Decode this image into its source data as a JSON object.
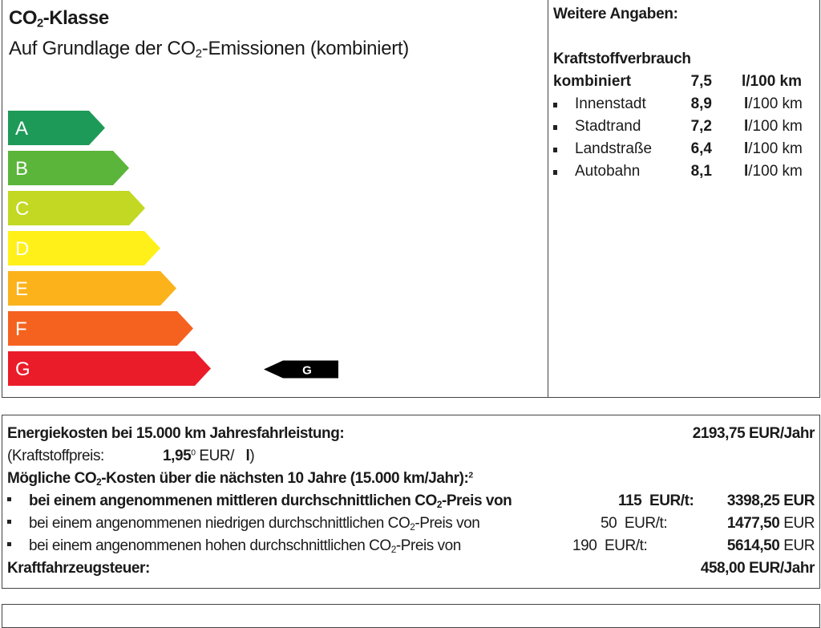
{
  "co2_class": {
    "title": "CO₂-Klasse",
    "title_parts": [
      "CO",
      "2",
      "-Klasse"
    ],
    "subtitle_parts": [
      "Auf Grundlage der CO",
      "2",
      "-Emissionen (kombiniert)"
    ],
    "classes": [
      {
        "label": "A",
        "color": "#1e9a58"
      },
      {
        "label": "B",
        "color": "#5bb53b"
      },
      {
        "label": "C",
        "color": "#c2d822"
      },
      {
        "label": "D",
        "color": "#fff01a"
      },
      {
        "label": "E",
        "color": "#fbb21b"
      },
      {
        "label": "F",
        "color": "#f5621f"
      },
      {
        "label": "G",
        "color": "#ea1c2a"
      }
    ],
    "current_class": "G"
  },
  "further_info": {
    "heading": "Weitere Angaben:",
    "fuel_heading": "Kraftstoffverbrauch",
    "combined": {
      "label": "kombiniert",
      "value": "7,5",
      "unit": "l/100 km"
    },
    "items": [
      {
        "label": "Innenstadt",
        "value": "8,9",
        "unit_l": "l",
        "unit_rest": "/100 km"
      },
      {
        "label": "Stadtrand",
        "value": "7,2",
        "unit_l": "l",
        "unit_rest": "/100 km"
      },
      {
        "label": "Landstraße",
        "value": "6,4",
        "unit_l": "l",
        "unit_rest": "/100 km"
      },
      {
        "label": "Autobahn",
        "value": "8,1",
        "unit_l": "l",
        "unit_rest": "/100 km"
      }
    ]
  },
  "costs": {
    "energy_label": "Energiekosten bei 15.000 km Jahresfahrleistung:",
    "energy_value": "2193,75 EUR/Jahr",
    "fuel_price_label": "(Kraftstoffpreis:",
    "fuel_price_value": "1,95",
    "fuel_price_sup": "0",
    "fuel_price_unit": "EUR/",
    "fuel_price_l": "l",
    "fuel_price_close": ")",
    "co2_heading_parts": [
      "Mögliche CO",
      "2",
      "-Kosten über die nächsten 10 Jahre (15.000 km/Jahr):",
      "2"
    ],
    "scenarios": [
      {
        "text_a": "bei einem angenommenen mittleren durchschnittlichen CO",
        "text_b": "-Preis von",
        "price": "115",
        "unit": "EUR/t:",
        "value": "3398,25",
        "currency": "EUR"
      },
      {
        "text_a": "bei einem angenommenen niedrigen durchschnittlichen CO",
        "text_b": "-Preis von",
        "price": "50",
        "unit": "EUR/t:",
        "value": "1477,50",
        "currency": "EUR"
      },
      {
        "text_a": "bei einem angenommenen hohen durchschnittlichen CO",
        "text_b": "-Preis von",
        "price": "190",
        "unit": "EUR/t:",
        "value": "5614,50",
        "currency": "EUR"
      }
    ],
    "co2_sub": "2",
    "tax_label": "Kraftfahrzeugsteuer:",
    "tax_value": "458,00 EUR/Jahr"
  }
}
